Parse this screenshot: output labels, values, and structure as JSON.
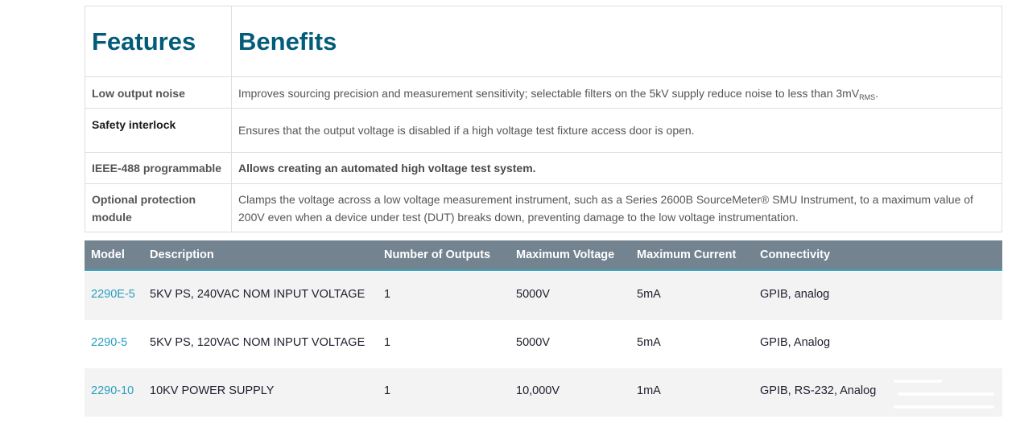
{
  "features_table": {
    "headers": {
      "features": "Features",
      "benefits": "Benefits"
    },
    "rows": [
      {
        "feature": "Low output noise",
        "benefit": "Improves sourcing precision and measurement sensitivity; selectable filters on the 5kV supply reduce noise to less than 3mV",
        "benefit_sub": "RMS",
        "benefit_tail": "."
      },
      {
        "feature": "Safety interlock",
        "benefit": "Ensures that the output voltage is disabled if a high voltage test fixture access door is open."
      },
      {
        "feature": "IEEE-488 programmable",
        "benefit": "Allows creating an automated high voltage test system."
      },
      {
        "feature_line1": "Optional protection",
        "feature_line2": "module",
        "benefit_line1": "Clamps the voltage across a low voltage measurement instrument, such as a Series 2600B SourceMeter® SMU Instrument, to a maximum value of",
        "benefit_line2": "200V even when a device under test (DUT) breaks down, preventing damage to the low voltage instrumentation."
      }
    ]
  },
  "model_table": {
    "headers": [
      "Model",
      "Description",
      "Number of Outputs",
      "Maximum Voltage",
      "Maximum Current",
      "Connectivity"
    ],
    "rows": [
      {
        "model": "2290E-5",
        "description": "5KV PS, 240VAC NOM INPUT VOLTAGE",
        "outputs": "1",
        "max_voltage": "5000V",
        "max_current": "5mA",
        "connectivity": "GPIB, analog"
      },
      {
        "model": "2290-5",
        "description": "5KV PS, 120VAC NOM INPUT VOLTAGE",
        "outputs": "1",
        "max_voltage": "5000V",
        "max_current": "5mA",
        "connectivity": "GPIB, Analog"
      },
      {
        "model": "2290-10",
        "description": "10KV POWER SUPPLY",
        "outputs": "1",
        "max_voltage": "10,000V",
        "max_current": "1mA",
        "connectivity": "GPIB, RS-232, Analog"
      }
    ]
  },
  "colors": {
    "heading": "#035b7a",
    "header_bg": "#738390",
    "header_accent": "#36a7bf",
    "link": "#2a9ec0",
    "row_shade": "#f3f3f3"
  }
}
